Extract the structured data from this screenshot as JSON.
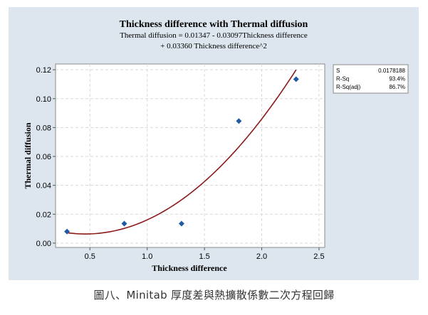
{
  "chart_data": {
    "type": "scatter",
    "title": "Thickness difference with Thermal diffusion",
    "subtitle_line1": "Thermal diffusion = 0.01347 - 0.03097Thickness difference",
    "subtitle_line2": "+ 0.03360 Thickness difference^2",
    "xlabel": "Thickness difference",
    "ylabel": "Thermal diffusion",
    "xlim": [
      0.2,
      2.55
    ],
    "ylim": [
      -0.003,
      0.124
    ],
    "x_ticks": [
      "0.5",
      "1.0",
      "1.5",
      "2.0",
      "2.5"
    ],
    "x_tick_values": [
      0.5,
      1.0,
      1.5,
      2.0,
      2.5
    ],
    "y_ticks": [
      "0.00",
      "0.02",
      "0.04",
      "0.06",
      "0.08",
      "0.10",
      "0.12"
    ],
    "y_tick_values": [
      0.0,
      0.02,
      0.04,
      0.06,
      0.08,
      0.1,
      0.12
    ],
    "grid": true,
    "series": [
      {
        "kind": "points",
        "x": [
          0.3,
          0.8,
          1.3,
          1.8,
          2.3
        ],
        "y": [
          0.008,
          0.0135,
          0.0135,
          0.0845,
          0.1135
        ],
        "color": "#1f5aa6"
      },
      {
        "kind": "fit",
        "equation": {
          "b0": 0.01347,
          "b1": -0.03097,
          "b2": 0.0336
        },
        "x_range": [
          0.3,
          2.3
        ],
        "color": "#8b1a1a"
      }
    ],
    "stats_table": [
      {
        "label": "S",
        "value": "0.0178188"
      },
      {
        "label": "R-Sq",
        "value": "93.4%"
      },
      {
        "label": "R-Sq(adj)",
        "value": "86.7%"
      }
    ]
  },
  "caption": "圖八、Minitab 厚度差與熱擴散係數二次方程回歸"
}
